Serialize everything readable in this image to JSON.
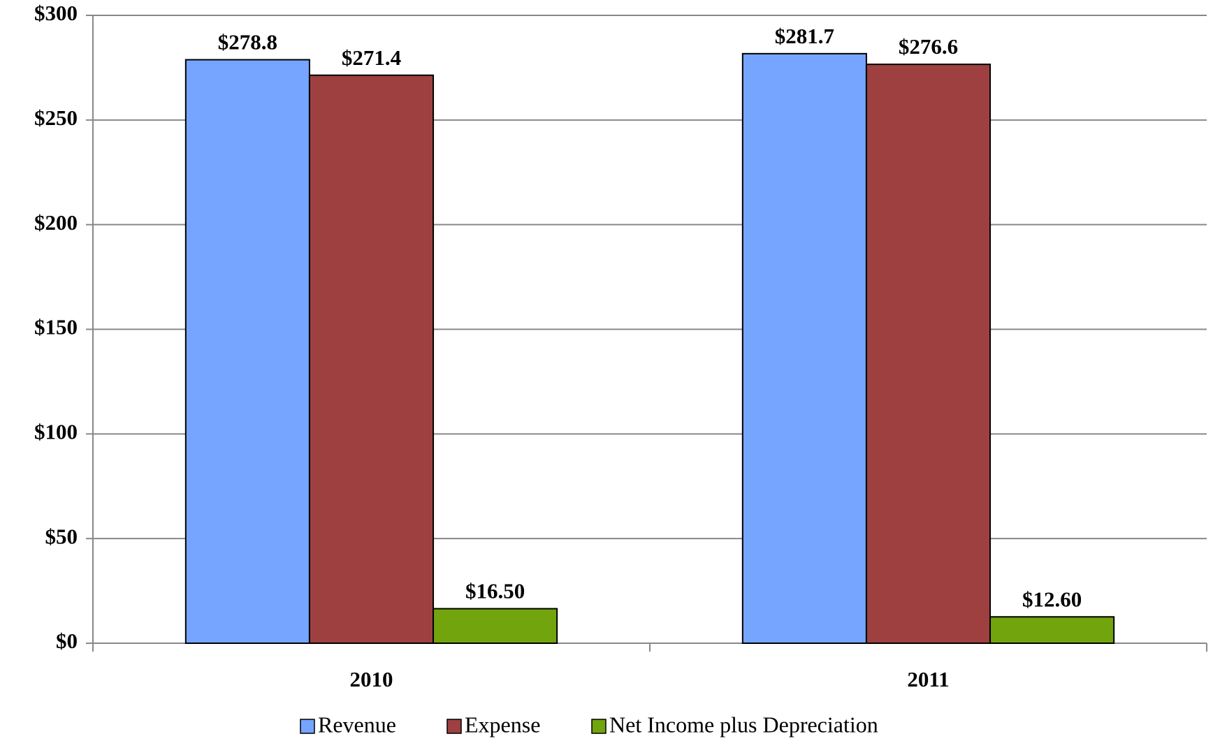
{
  "chart_data": {
    "type": "bar",
    "categories": [
      "2010",
      "2011"
    ],
    "series": [
      {
        "name": "Revenue",
        "color": "#75a5ff",
        "values": [
          278.8,
          281.7
        ],
        "value_labels": [
          "$278.8",
          "$281.7"
        ]
      },
      {
        "name": "Expense",
        "color": "#9e4040",
        "values": [
          271.4,
          276.6
        ],
        "value_labels": [
          "$271.4",
          "$276.6"
        ]
      },
      {
        "name": "Net Income plus Depreciation",
        "color": "#72a40e",
        "values": [
          16.5,
          12.6
        ],
        "value_labels": [
          "$16.50",
          "$12.60"
        ]
      }
    ],
    "ylim": [
      0,
      300
    ],
    "yticks": [
      {
        "value": 0,
        "label": "$0"
      },
      {
        "value": 50,
        "label": "$50"
      },
      {
        "value": 100,
        "label": "$100"
      },
      {
        "value": 150,
        "label": "$150"
      },
      {
        "value": 200,
        "label": "$200"
      },
      {
        "value": 250,
        "label": "$250"
      },
      {
        "value": 300,
        "label": "$300"
      }
    ],
    "grid": true,
    "legend": "bottom"
  }
}
